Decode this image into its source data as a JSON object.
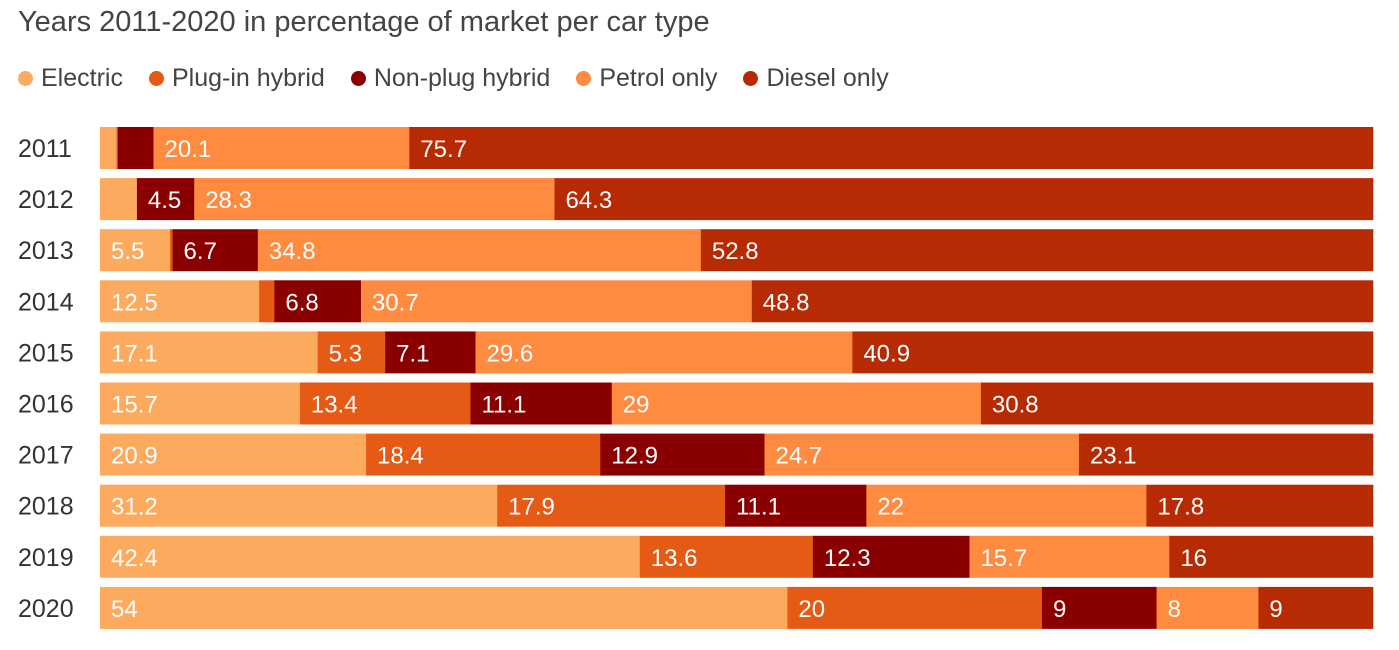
{
  "chart_data": {
    "type": "bar",
    "orientation": "horizontal",
    "stacked": true,
    "title": "Years 2011-2020 in percentage of market per car type",
    "categories": [
      "2011",
      "2012",
      "2013",
      "2014",
      "2015",
      "2016",
      "2017",
      "2018",
      "2019",
      "2020"
    ],
    "series": [
      {
        "name": "Electric",
        "color": "#fcaa5e",
        "values": [
          1.3,
          2.9,
          5.5,
          12.5,
          17.1,
          15.7,
          20.9,
          31.2,
          42.4,
          54
        ],
        "labels": [
          "",
          "",
          "5.5",
          "12.5",
          "17.1",
          "15.7",
          "20.9",
          "31.2",
          "42.4",
          "54"
        ]
      },
      {
        "name": "Plug-in hybrid",
        "color": "#e55a14",
        "values": [
          0.1,
          0.0,
          0.2,
          1.2,
          5.3,
          13.4,
          18.4,
          17.9,
          13.6,
          20
        ],
        "labels": [
          "",
          "",
          "",
          "",
          "5.3",
          "13.4",
          "18.4",
          "17.9",
          "13.6",
          "20"
        ]
      },
      {
        "name": "Non-plug hybrid",
        "color": "#8a0000",
        "values": [
          2.8,
          4.5,
          6.7,
          6.8,
          7.1,
          11.1,
          12.9,
          11.1,
          12.3,
          9
        ],
        "labels": [
          "",
          "4.5",
          "6.7",
          "6.8",
          "7.1",
          "11.1",
          "12.9",
          "11.1",
          "12.3",
          "9"
        ]
      },
      {
        "name": "Petrol only",
        "color": "#fe8b3f",
        "values": [
          20.1,
          28.3,
          34.8,
          30.7,
          29.6,
          29,
          24.7,
          22,
          15.7,
          8
        ],
        "labels": [
          "20.1",
          "28.3",
          "34.8",
          "30.7",
          "29.6",
          "29",
          "24.7",
          "22",
          "15.7",
          "8"
        ]
      },
      {
        "name": "Diesel only",
        "color": "#b72b04",
        "values": [
          75.7,
          64.3,
          52.8,
          48.8,
          40.9,
          30.8,
          23.1,
          17.8,
          16,
          9
        ],
        "labels": [
          "75.7",
          "64.3",
          "52.8",
          "48.8",
          "40.9",
          "30.8",
          "23.1",
          "17.8",
          "16",
          "9"
        ]
      }
    ],
    "xlim": [
      0,
      100
    ],
    "grid": false,
    "legend_position": "top-left"
  }
}
